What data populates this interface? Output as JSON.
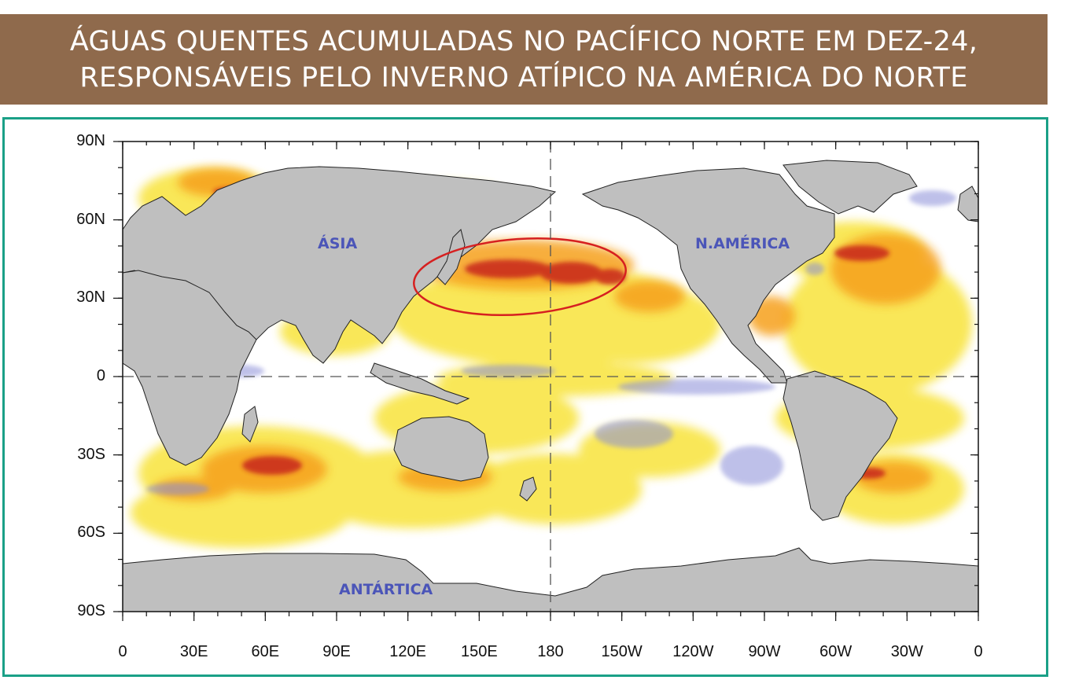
{
  "title": {
    "line1": "ÁGUAS QUENTES ACUMULADAS NO PACÍFICO NORTE EM DEZ-24,",
    "line2": "RESPONSÁVEIS PELO INVERNO ATÍPICO NA AMÉRICA DO NORTE"
  },
  "colors": {
    "banner": "#8f6a4c",
    "frame": "#1aa087",
    "land": "#bfbfbf",
    "highlight_ellipse": "#d62020",
    "label": "#4b55b8"
  },
  "map": {
    "lat_ticks": [
      "90N",
      "60N",
      "30N",
      "0",
      "30S",
      "60S",
      "90S"
    ],
    "lon_ticks": [
      "0",
      "30E",
      "60E",
      "90E",
      "120E",
      "150E",
      "180",
      "150W",
      "120W",
      "90W",
      "60W",
      "30W",
      "0"
    ],
    "labels": {
      "asia": "ÁSIA",
      "north_america": "N.AMÉRICA",
      "antarctica": "ANTÁRTICA"
    },
    "highlight": "North Pacific warm anomaly"
  }
}
